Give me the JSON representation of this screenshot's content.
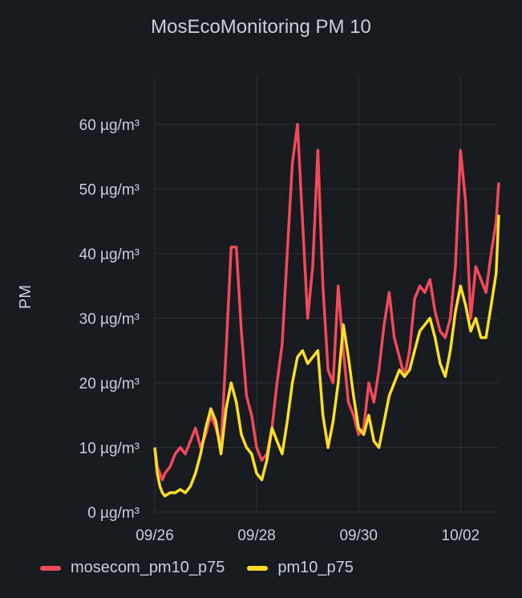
{
  "panel": {
    "title": "MosEcoMonitoring PM 10"
  },
  "chart_data": {
    "type": "line",
    "title": "MosEcoMonitoring PM 10",
    "xlabel": "",
    "ylabel": "PM",
    "y_unit": "µg/m³",
    "ylim": [
      0,
      60
    ],
    "y_ticks": [
      {
        "value": 0,
        "label": "0 µg/m³"
      },
      {
        "value": 10,
        "label": "10 µg/m³"
      },
      {
        "value": 20,
        "label": "20 µg/m³"
      },
      {
        "value": 30,
        "label": "30 µg/m³"
      },
      {
        "value": 40,
        "label": "40 µg/m³"
      },
      {
        "value": 50,
        "label": "50 µg/m³"
      },
      {
        "value": 60,
        "label": "60 µg/m³"
      }
    ],
    "x_ticks": [
      {
        "value": 0,
        "label": "09/26"
      },
      {
        "value": 2,
        "label": "09/28"
      },
      {
        "value": 4,
        "label": "09/30"
      },
      {
        "value": 6,
        "label": "10/02"
      }
    ],
    "xlim": [
      0,
      6.75
    ],
    "grid": true,
    "legend_position": "bottom-left",
    "series": [
      {
        "name": "mosecom_pm10_p75",
        "color": "#f2495c",
        "x": [
          0,
          0.05,
          0.1,
          0.15,
          0.2,
          0.3,
          0.4,
          0.5,
          0.6,
          0.7,
          0.8,
          0.9,
          1.0,
          1.1,
          1.2,
          1.3,
          1.4,
          1.5,
          1.6,
          1.7,
          1.8,
          1.9,
          2.0,
          2.1,
          2.2,
          2.3,
          2.4,
          2.5,
          2.6,
          2.7,
          2.8,
          2.9,
          3.0,
          3.1,
          3.2,
          3.3,
          3.4,
          3.5,
          3.6,
          3.7,
          3.8,
          3.9,
          4.0,
          4.1,
          4.2,
          4.3,
          4.4,
          4.5,
          4.6,
          4.7,
          4.8,
          4.9,
          5.0,
          5.1,
          5.2,
          5.3,
          5.4,
          5.5,
          5.6,
          5.7,
          5.8,
          5.9,
          6.0,
          6.1,
          6.2,
          6.3,
          6.4,
          6.5,
          6.6,
          6.7,
          6.75
        ],
        "values": [
          10,
          7,
          6,
          5,
          6,
          7,
          9,
          10,
          9,
          11,
          13,
          10,
          12,
          15,
          13,
          10,
          25,
          41,
          41,
          28,
          18,
          15,
          10,
          8,
          9,
          13,
          20,
          26,
          40,
          54,
          60,
          45,
          30,
          38,
          56,
          35,
          22,
          20,
          35,
          25,
          17,
          15,
          12,
          13,
          20,
          17,
          22,
          29,
          34,
          27,
          24,
          21,
          25,
          33,
          35,
          34,
          36,
          31,
          28,
          27,
          30,
          38,
          56,
          48,
          30,
          38,
          36,
          34,
          40,
          45,
          51
        ]
      },
      {
        "name": "pm10_p75",
        "color": "#fade2a",
        "x": [
          0,
          0.05,
          0.1,
          0.15,
          0.2,
          0.3,
          0.4,
          0.5,
          0.6,
          0.7,
          0.8,
          0.9,
          1.0,
          1.1,
          1.2,
          1.3,
          1.4,
          1.5,
          1.6,
          1.7,
          1.8,
          1.9,
          2.0,
          2.1,
          2.2,
          2.3,
          2.4,
          2.5,
          2.6,
          2.7,
          2.8,
          2.9,
          3.0,
          3.1,
          3.2,
          3.3,
          3.4,
          3.5,
          3.6,
          3.7,
          3.8,
          3.9,
          4.0,
          4.1,
          4.2,
          4.3,
          4.4,
          4.5,
          4.6,
          4.7,
          4.8,
          4.9,
          5.0,
          5.1,
          5.2,
          5.3,
          5.4,
          5.5,
          5.6,
          5.7,
          5.8,
          5.9,
          6.0,
          6.1,
          6.2,
          6.3,
          6.4,
          6.5,
          6.6,
          6.7,
          6.75
        ],
        "values": [
          10,
          6,
          4,
          3,
          2.5,
          3,
          3,
          3.5,
          3,
          4,
          6,
          9,
          13,
          16,
          14,
          9,
          16,
          20,
          17,
          12,
          10,
          9,
          6,
          5,
          8,
          13,
          11,
          9,
          14,
          20,
          24,
          25,
          23,
          24,
          25,
          15,
          10,
          14,
          20,
          29,
          24,
          18,
          13,
          12,
          15,
          11,
          10,
          14,
          18,
          20,
          22,
          21,
          22,
          25,
          28,
          29,
          30,
          27,
          23,
          21,
          25,
          31,
          35,
          32,
          28,
          30,
          27,
          27,
          32,
          37,
          46
        ]
      }
    ]
  }
}
